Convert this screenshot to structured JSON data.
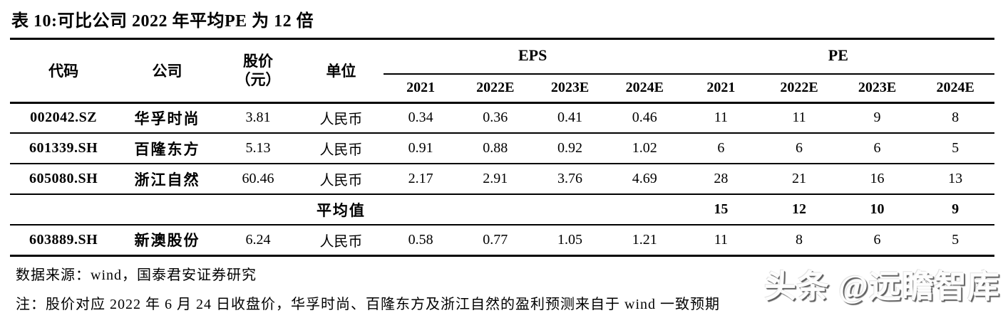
{
  "page": {
    "title": "表 10:可比公司 2022 年平均PE 为 12 倍",
    "source_line": "数据来源：wind，国泰君安证券研究",
    "note_line": "注：股价对应 2022 年 6 月 24 日收盘价，华孚时尚、百隆东方及浙江自然的盈利预测来自于 wind 一致预期",
    "watermark": "头条 @远瞻智库"
  },
  "table": {
    "headers": {
      "code": "代码",
      "company": "公司",
      "price_line1": "股价",
      "price_line2": "（元）",
      "unit": "单位",
      "eps_group": "EPS",
      "pe_group": "PE",
      "eps_years": [
        "2021",
        "2022E",
        "2023E",
        "2024E"
      ],
      "pe_years": [
        "2021",
        "2022E",
        "2023E",
        "2024E"
      ]
    },
    "rows": [
      {
        "code": "002042.SZ",
        "company": "华孚时尚",
        "price": "3.81",
        "unit": "人民币",
        "eps": [
          "0.34",
          "0.36",
          "0.41",
          "0.46"
        ],
        "pe": [
          "11",
          "11",
          "9",
          "8"
        ]
      },
      {
        "code": "601339.SH",
        "company": "百隆东方",
        "price": "5.13",
        "unit": "人民币",
        "eps": [
          "0.91",
          "0.88",
          "0.92",
          "1.02"
        ],
        "pe": [
          "6",
          "6",
          "6",
          "5"
        ]
      },
      {
        "code": "605080.SH",
        "company": "浙江自然",
        "price": "60.46",
        "unit": "人民币",
        "eps": [
          "2.17",
          "2.91",
          "3.76",
          "4.69"
        ],
        "pe": [
          "28",
          "21",
          "16",
          "13"
        ]
      }
    ],
    "average_row": {
      "label": "平均值",
      "pe": [
        "15",
        "12",
        "10",
        "9"
      ]
    },
    "last_row": {
      "code": "603889.SH",
      "company": "新澳股份",
      "price": "6.24",
      "unit": "人民币",
      "eps": [
        "0.58",
        "0.77",
        "1.05",
        "1.21"
      ],
      "pe": [
        "11",
        "8",
        "6",
        "5"
      ]
    }
  }
}
